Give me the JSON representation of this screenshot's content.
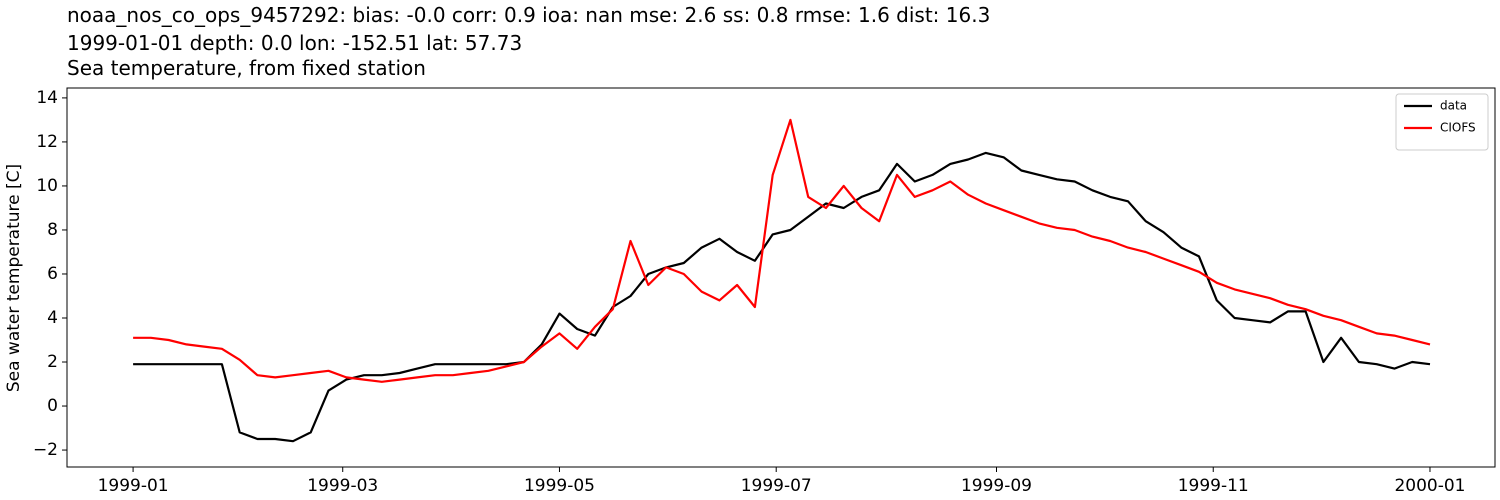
{
  "chart_data": {
    "type": "line",
    "title_lines": [
      "noaa_nos_co_ops_9457292: bias: -0.0  corr: 0.9  ioa: nan  mse: 2.6  ss: 0.8  rmse: 1.6  dist: 16.3",
      "1999-01-01 depth: 0.0 lon: -152.51 lat: 57.73",
      "Sea temperature, from fixed station"
    ],
    "y_label": "Sea water temperature [C]",
    "x": [
      0,
      5,
      10,
      15,
      20,
      25,
      30,
      35,
      40,
      45,
      50,
      55,
      60,
      65,
      70,
      75,
      80,
      85,
      90,
      95,
      100,
      105,
      110,
      115,
      120,
      125,
      130,
      135,
      140,
      145,
      150,
      155,
      160,
      165,
      170,
      175,
      180,
      185,
      190,
      195,
      200,
      205,
      210,
      215,
      220,
      225,
      230,
      235,
      240,
      245,
      250,
      255,
      260,
      265,
      270,
      275,
      280,
      285,
      290,
      295,
      300,
      305,
      310,
      315,
      320,
      325,
      330,
      335,
      340,
      345,
      350,
      355,
      360,
      365
    ],
    "series": [
      {
        "name": "data",
        "color": "#000000",
        "values": [
          1.9,
          1.9,
          1.9,
          1.9,
          1.9,
          1.9,
          -1.2,
          -1.5,
          -1.5,
          -1.6,
          -1.2,
          0.7,
          1.2,
          1.4,
          1.4,
          1.5,
          1.7,
          1.9,
          1.9,
          1.9,
          1.9,
          1.9,
          2.0,
          2.8,
          4.2,
          3.5,
          3.2,
          4.5,
          5.0,
          6.0,
          6.3,
          6.5,
          7.2,
          7.6,
          7.0,
          6.6,
          7.8,
          8.0,
          8.6,
          9.2,
          9.0,
          9.5,
          9.8,
          11.0,
          10.2,
          10.5,
          11.0,
          11.2,
          11.5,
          11.3,
          10.7,
          10.5,
          10.3,
          10.2,
          9.8,
          9.5,
          9.3,
          8.4,
          7.9,
          7.2,
          6.8,
          4.8,
          4.0,
          3.9,
          3.8,
          4.3,
          4.3,
          2.0,
          3.1,
          2.0,
          1.9,
          1.7,
          2.0,
          1.9
        ]
      },
      {
        "name": "CIOFS",
        "color": "#ff0000",
        "values": [
          3.1,
          3.1,
          3.0,
          2.8,
          2.7,
          2.6,
          2.1,
          1.4,
          1.3,
          1.4,
          1.5,
          1.6,
          1.3,
          1.2,
          1.1,
          1.2,
          1.3,
          1.4,
          1.4,
          1.5,
          1.6,
          1.8,
          2.0,
          2.7,
          3.3,
          2.6,
          3.6,
          4.4,
          7.5,
          5.5,
          6.3,
          6.0,
          5.2,
          4.8,
          5.5,
          4.5,
          10.5,
          13.0,
          9.5,
          9.0,
          10.0,
          9.0,
          8.4,
          10.5,
          9.5,
          9.8,
          10.2,
          9.6,
          9.2,
          8.9,
          8.6,
          8.3,
          8.1,
          8.0,
          7.7,
          7.5,
          7.2,
          7.0,
          6.7,
          6.4,
          6.1,
          5.6,
          5.3,
          5.1,
          4.9,
          4.6,
          4.4,
          4.1,
          3.9,
          3.6,
          3.3,
          3.2,
          3.0,
          2.8
        ]
      }
    ],
    "xlim": [
      -18.6,
      383.3
    ],
    "xticks": [
      {
        "value": 0,
        "label": "1999-01"
      },
      {
        "value": 59,
        "label": "1999-03"
      },
      {
        "value": 120,
        "label": "1999-05"
      },
      {
        "value": 181,
        "label": "1999-07"
      },
      {
        "value": 243,
        "label": "1999-09"
      },
      {
        "value": 304,
        "label": "1999-11"
      },
      {
        "value": 365,
        "label": "2000-01"
      }
    ],
    "ylim": [
      -2.77,
      14.45
    ],
    "yticks": [
      {
        "value": -2,
        "label": "−2"
      },
      0,
      2,
      4,
      6,
      8,
      10,
      12,
      14
    ],
    "grid": false,
    "legend": "upper right"
  }
}
